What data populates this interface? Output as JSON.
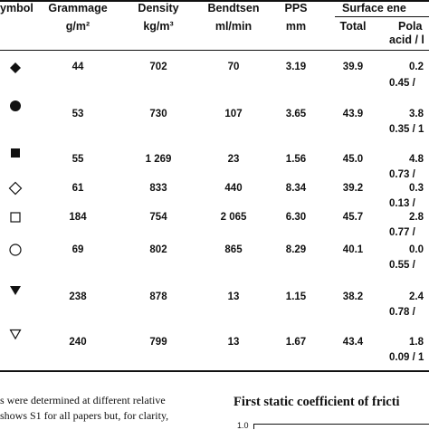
{
  "table": {
    "headers": {
      "symbol": "ymbol",
      "grammage": "Grammage",
      "grammage_unit": "g/m²",
      "density": "Density",
      "density_unit": "kg/m³",
      "bendtsen": "Bendtsen",
      "bendtsen_unit": "ml/min",
      "pps": "PPS",
      "pps_unit": "mm",
      "surface_energy": "Surface ene",
      "total": "Total",
      "polar": "Pola",
      "polar_unit": "acid / l"
    },
    "rows": [
      {
        "symbol": "diamond-filled-icon",
        "grammage": "44",
        "density": "702",
        "bendtsen": "70",
        "pps": "3.19",
        "total": "39.9",
        "polar": "0.2",
        "acid_base": "0.45 /"
      },
      {
        "symbol": "circle-filled-icon",
        "grammage": "53",
        "density": "730",
        "bendtsen": "107",
        "pps": "3.65",
        "total": "43.9",
        "polar": "3.8",
        "acid_base": "0.35 / 1"
      },
      {
        "symbol": "square-filled-icon",
        "grammage": "55",
        "density": "1 269",
        "bendtsen": "23",
        "pps": "1.56",
        "total": "45.0",
        "polar": "4.8",
        "acid_base": "0.73 /"
      },
      {
        "symbol": "diamond-open-icon",
        "grammage": "61",
        "density": "833",
        "bendtsen": "440",
        "pps": "8.34",
        "total": "39.2",
        "polar": "0.3",
        "acid_base": "0.13 /"
      },
      {
        "symbol": "square-open-icon",
        "grammage": "184",
        "density": "754",
        "bendtsen": "2 065",
        "pps": "6.30",
        "total": "45.7",
        "polar": "2.8",
        "acid_base": "0.77 /"
      },
      {
        "symbol": "circle-open-icon",
        "grammage": "69",
        "density": "802",
        "bendtsen": "865",
        "pps": "8.29",
        "total": "40.1",
        "polar": "0.0",
        "acid_base": "0.55 /"
      },
      {
        "symbol": "triangle-down-filled-icon",
        "grammage": "238",
        "density": "878",
        "bendtsen": "13",
        "pps": "1.15",
        "total": "38.2",
        "polar": "2.4",
        "acid_base": "0.78 /"
      },
      {
        "symbol": "triangle-down-open-icon",
        "grammage": "240",
        "density": "799",
        "bendtsen": "13",
        "pps": "1.67",
        "total": "43.4",
        "polar": "1.8",
        "acid_base": "0.09 / 1"
      }
    ]
  },
  "body_text": {
    "line1": "s were determined at different relative",
    "line2": "shows S1 for all papers but, for clarity,"
  },
  "figure": {
    "title": "First static coefficient of fricti",
    "y_tick": "1.0"
  },
  "colors": {
    "ink": "#111111",
    "background": "#ffffff"
  }
}
